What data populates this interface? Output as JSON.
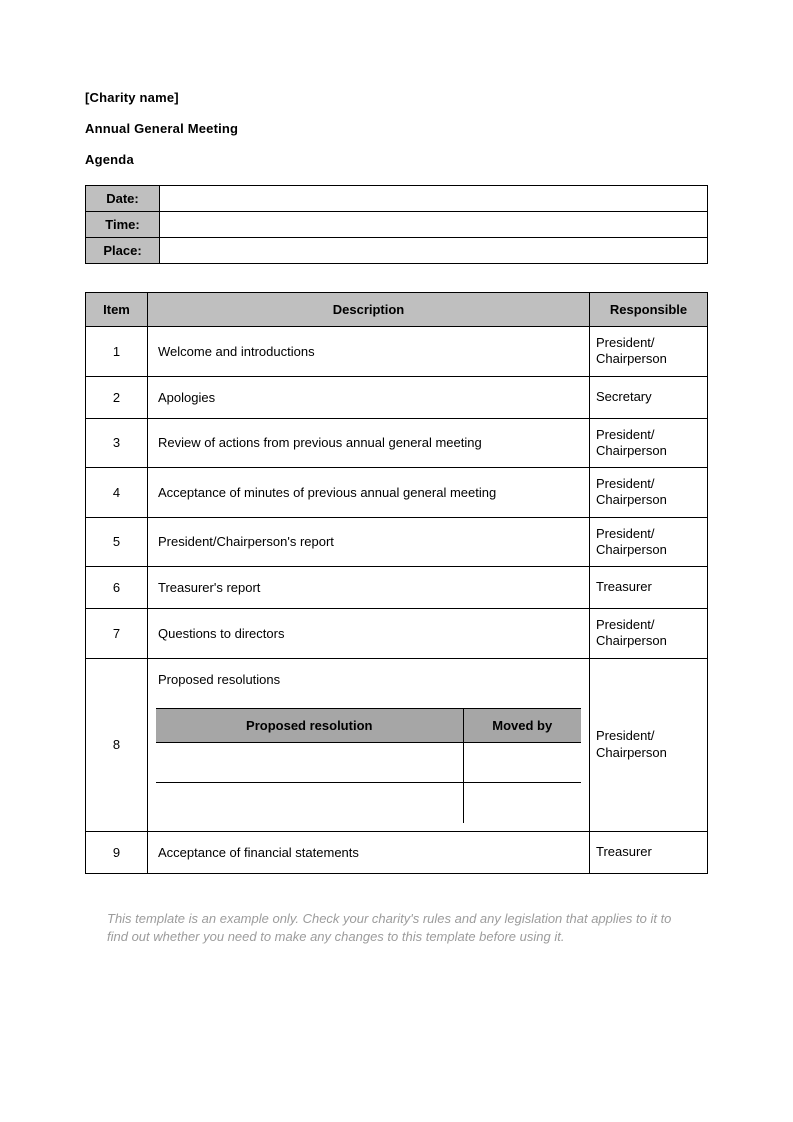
{
  "header": {
    "charity_name": "[Charity name]",
    "title": "Annual General Meeting",
    "subtitle": "Agenda"
  },
  "info": {
    "date_label": "Date:",
    "date_value": "",
    "time_label": "Time:",
    "time_value": "",
    "place_label": "Place:",
    "place_value": ""
  },
  "agenda": {
    "columns": {
      "item": "Item",
      "description": "Description",
      "responsible": "Responsible"
    },
    "rows": [
      {
        "item": "1",
        "description": "Welcome and introductions",
        "responsible": "President/ Chairperson"
      },
      {
        "item": "2",
        "description": "Apologies",
        "responsible": "Secretary"
      },
      {
        "item": "3",
        "description": "Review of actions from previous annual general meeting",
        "responsible": "President/ Chairperson"
      },
      {
        "item": "4",
        "description": "Acceptance of minutes of previous annual general meeting",
        "responsible": "President/ Chairperson"
      },
      {
        "item": "5",
        "description": "President/Chairperson's report",
        "responsible": "President/ Chairperson"
      },
      {
        "item": "6",
        "description": "Treasurer's report",
        "responsible": "Treasurer"
      },
      {
        "item": "7",
        "description": "Questions to directors",
        "responsible": "President/ Chairperson"
      },
      {
        "item": "8",
        "description": "Proposed resolutions",
        "responsible": "President/ Chairperson"
      },
      {
        "item": "9",
        "description": "Acceptance of financial statements",
        "responsible": "Treasurer"
      }
    ],
    "nested": {
      "columns": {
        "resolution": "Proposed resolution",
        "moved_by": "Moved by"
      },
      "rows": [
        {
          "resolution": "",
          "moved_by": ""
        },
        {
          "resolution": "",
          "moved_by": ""
        }
      ]
    }
  },
  "disclaimer": "This template is an example only. Check your charity's rules and any legislation that applies to it to find out whether you need to make any changes to this template before using it.",
  "style": {
    "page_bg": "#ffffff",
    "text_color": "#000000",
    "header_cell_bg": "#bfbfbf",
    "nested_header_bg": "#a6a6a6",
    "border_color": "#000000",
    "disclaimer_color": "#9c9c9c",
    "font_family": "Arial",
    "font_size_pt": 10
  }
}
